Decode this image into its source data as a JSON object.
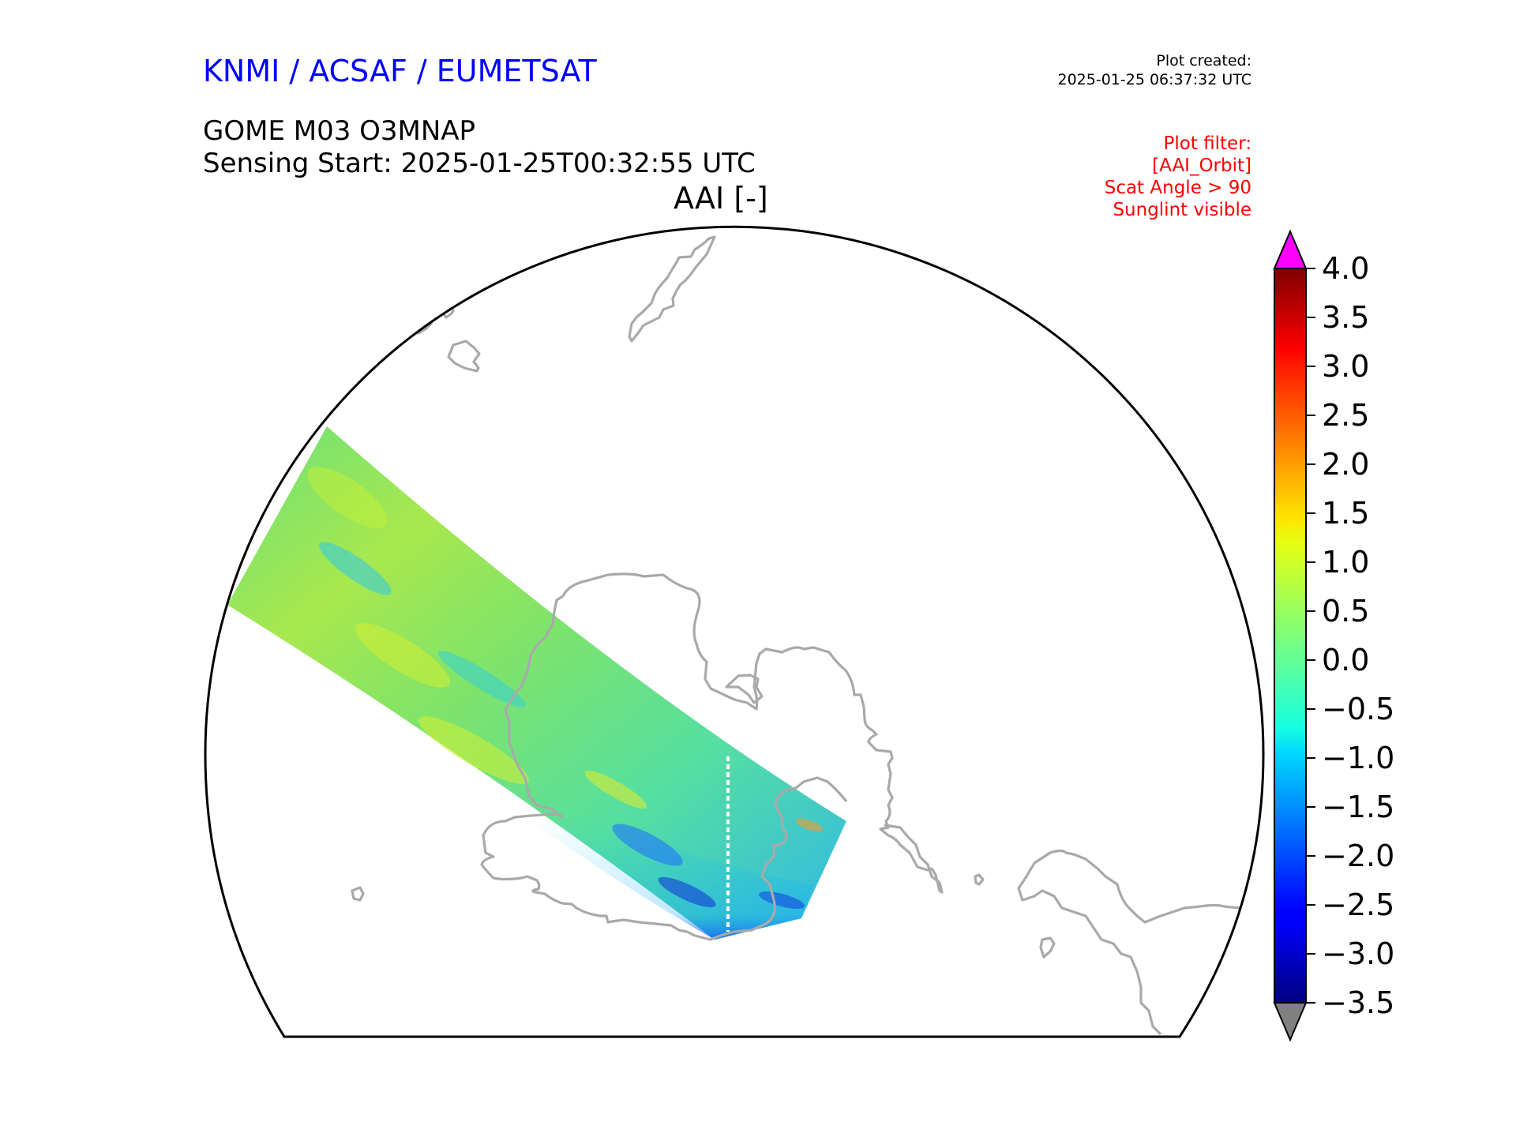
{
  "header": {
    "org": "KNMI / ACSAF / EUMETSAT",
    "product": "GOME M03 O3MNAP",
    "sensing_start": "Sensing Start: 2025-01-25T00:32:55 UTC",
    "map_title": "AAI [-]"
  },
  "plot_created": {
    "label": "Plot created:",
    "timestamp": "2025-01-25 06:37:32 UTC"
  },
  "plot_filter": {
    "label": "Plot filter:",
    "lines": [
      "[AAI_Orbit]",
      "Scat Angle > 90",
      "Sunglint visible"
    ]
  },
  "colorbar": {
    "min": -3.5,
    "max": 4.0,
    "ticks": [
      "4.0",
      "3.5",
      "3.0",
      "2.5",
      "2.0",
      "1.5",
      "1.0",
      "0.5",
      "0.0",
      "−0.5",
      "−1.0",
      "−1.5",
      "−2.0",
      "−2.5",
      "−3.0",
      "−3.5"
    ],
    "over_color": "#ff00ff",
    "under_color": "#808080",
    "colormap": "jet"
  },
  "colors": {
    "coastline": "#a9a9a9",
    "boundary": "#000000",
    "org_text": "#0000ff",
    "filter_text": "#ff0000"
  }
}
